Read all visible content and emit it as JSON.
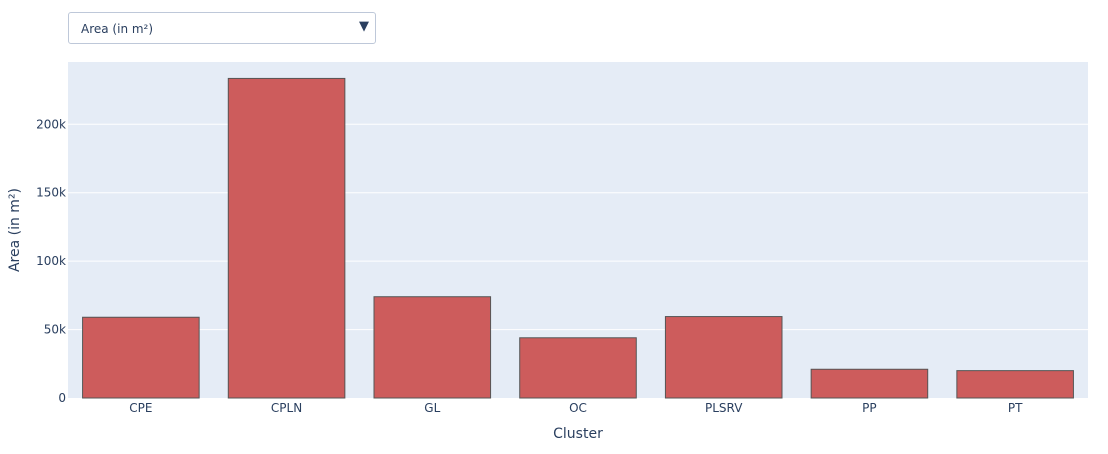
{
  "dropdown": {
    "selected_label": "Area (in m²)",
    "arrow_icon": "▼"
  },
  "chart_data": {
    "type": "bar",
    "categories": [
      "CPE",
      "CPLN",
      "GL",
      "OC",
      "PLSRV",
      "PP",
      "PT"
    ],
    "values": [
      59000,
      233500,
      74000,
      44000,
      59500,
      21000,
      20000
    ],
    "xlabel": "Cluster",
    "ylabel": "Area (in m²)",
    "ylim": [
      0,
      245500
    ],
    "yticks": [
      0,
      50000,
      100000,
      150000,
      200000
    ],
    "yticklabels": [
      "0",
      "50k",
      "100k",
      "150k",
      "200k"
    ],
    "grid": true,
    "colors": {
      "bar": "#cd5c5c",
      "bar_edge": "#555555",
      "plot_bg": "#e5ecf6",
      "grid": "#ffffff",
      "text": "#2a3f5f"
    }
  }
}
